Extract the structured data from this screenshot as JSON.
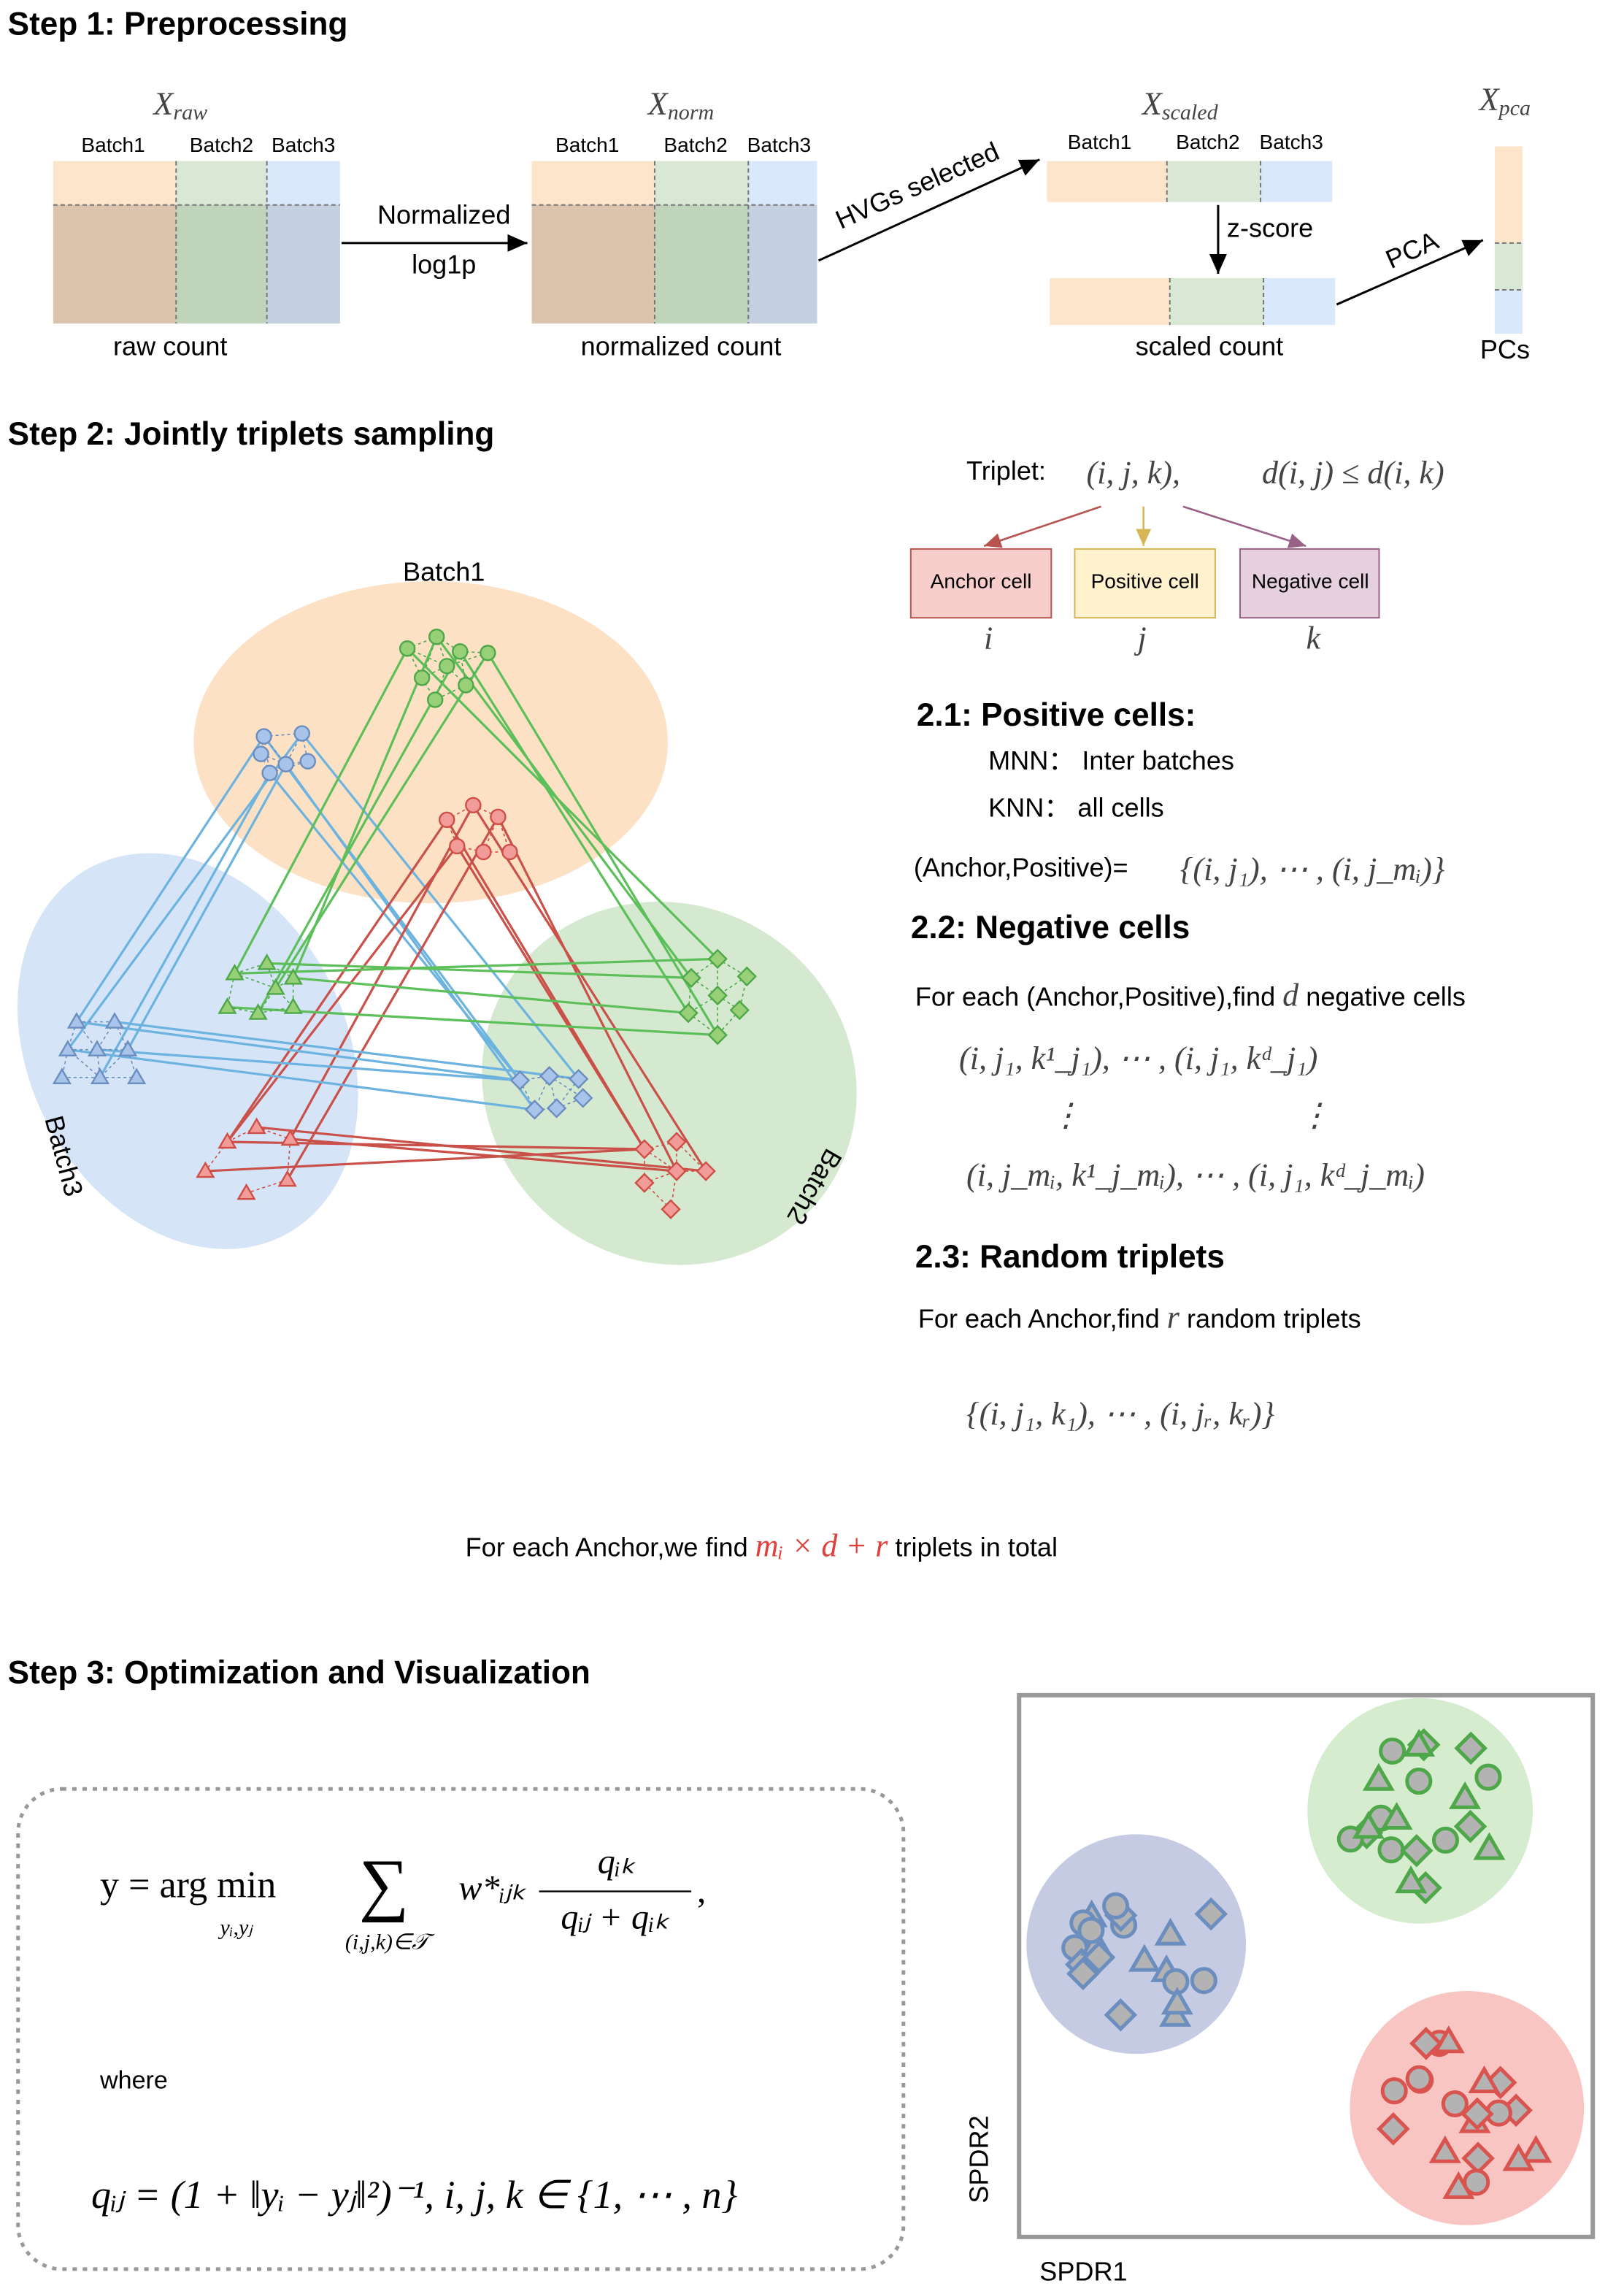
{
  "step1": {
    "title": "Step 1: Preprocessing",
    "matrices": [
      {
        "symbol": "X",
        "subscript": "raw",
        "batches": [
          "Batch1",
          "Batch2",
          "Batch3"
        ],
        "caption": "raw count"
      },
      {
        "symbol": "X",
        "subscript": "norm",
        "batches": [
          "Batch1",
          "Batch2",
          "Batch3"
        ],
        "caption": "normalized count"
      },
      {
        "symbol": "X",
        "subscript": "scaled",
        "batches": [
          "Batch1",
          "Batch2",
          "Batch3"
        ],
        "caption": "scaled count"
      },
      {
        "symbol": "X",
        "subscript": "pca",
        "caption": "PCs"
      }
    ],
    "arrows": {
      "normalize": "Normalized",
      "log": "log1p",
      "hvg": "HVGs selected",
      "zscore": "z-score",
      "pca": "PCA"
    }
  },
  "step2": {
    "title": "Step 2: Jointly triplets sampling",
    "batches": [
      "Batch1",
      "Batch2",
      "Batch3"
    ],
    "triplet": {
      "label": "Triplet:",
      "tuple": "(i, j, k),",
      "condition": "d(i, j) ≤ d(i, k)",
      "cells": [
        {
          "label": "Anchor cell",
          "symbol": "i"
        },
        {
          "label": "Positive cell",
          "symbol": "j"
        },
        {
          "label": "Negative cell",
          "symbol": "k"
        }
      ]
    },
    "positive": {
      "heading": "2.1: Positive  cells:",
      "mnn": "MNN： Inter batches",
      "knn": "KNN： all cells",
      "pair_label": "(Anchor,Positive)=",
      "pair_formula": "{(i, j₁), ⋯ , (i, j_mᵢ)}"
    },
    "negative": {
      "heading": "2.2: Negative  cells",
      "text_before": "For each (Anchor,Positive),find",
      "symbol": "d",
      "text_after": "negative cells",
      "row1": "(i, j₁, k¹_j₁), ⋯ , (i, j₁, kᵈ_j₁)",
      "dots": "⋮",
      "row2": "(i, j_mᵢ, k¹_j_mᵢ), ⋯ , (i, j₁, kᵈ_j_mᵢ)"
    },
    "random": {
      "heading": "2.3: Random  triplets",
      "text_before": "For each Anchor,find",
      "symbol": "r",
      "text_after": "random triplets",
      "formula": "{(i, j₁, k₁), ⋯ , (i, jᵣ, kᵣ)}"
    },
    "total": {
      "before": "For each Anchor,we find",
      "formula": "mᵢ × d + r",
      "after": "triplets in total"
    }
  },
  "step3": {
    "title": "Step 3: Optimization and Visualization",
    "objective": {
      "lhs": "y = arg min",
      "under": "yᵢ,yⱼ",
      "sum": "∑",
      "sum_under": "(i,j,k)∈𝒯",
      "weight": "w*ᵢⱼₖ",
      "numerator": "qᵢₖ",
      "denominator": "qᵢⱼ + qᵢₖ",
      "comma": ","
    },
    "where": "where",
    "q_formula": "qᵢⱼ = (1 + ‖yᵢ − yⱼ‖²)⁻¹, i, j, k ∈ {1, ⋯ , n}",
    "xlabel": "SPDR1",
    "ylabel": "SPDR2"
  }
}
